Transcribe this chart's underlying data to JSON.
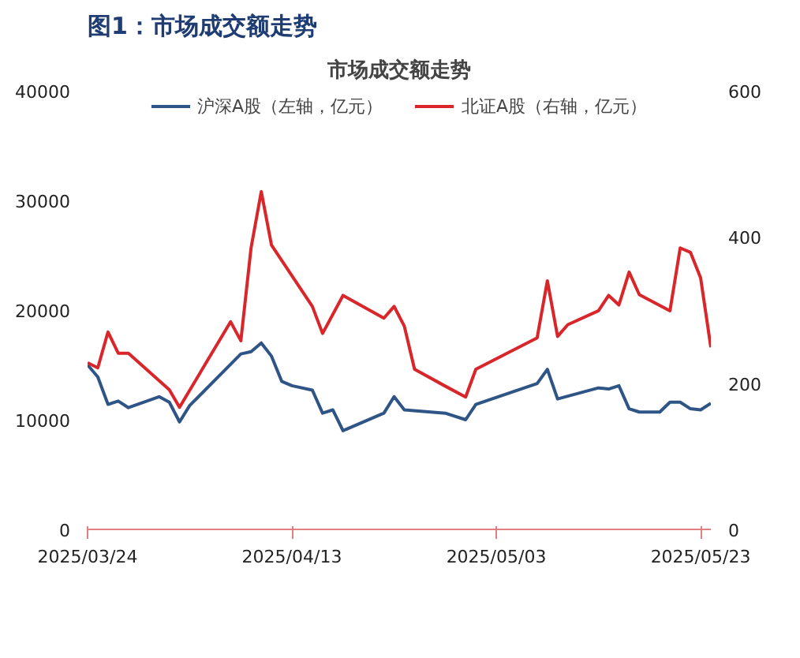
{
  "chart_data": {
    "type": "line",
    "title": "图1：市场成交额走势",
    "subtitle": "市场成交额走势",
    "xlim": [
      "2025-03-24",
      "2025-05-24"
    ],
    "xticks": [
      {
        "value": "2025-03-24",
        "label": "2025/03/24"
      },
      {
        "value": "2025-04-13",
        "label": "2025/04/13"
      },
      {
        "value": "2025-05-03",
        "label": "2025/05/03"
      },
      {
        "value": "2025-05-23",
        "label": "2025/05/23"
      }
    ],
    "ylim": [
      0,
      40000
    ],
    "yticks": [
      0,
      10000,
      20000,
      30000,
      40000
    ],
    "y2lim": [
      0,
      600
    ],
    "y2ticks": [
      0,
      200,
      400,
      600
    ],
    "grid": false,
    "legend": "top",
    "line_style": "solid",
    "series": [
      {
        "name": "沪深A股（左轴，亿元）",
        "color": "#2f5587",
        "x": [
          "2025-03-24",
          "2025-03-25",
          "2025-03-26",
          "2025-03-27",
          "2025-03-28",
          "2025-03-31",
          "2025-04-01",
          "2025-04-02",
          "2025-04-03",
          "2025-04-08",
          "2025-04-09",
          "2025-04-10",
          "2025-04-11",
          "2025-04-12",
          "2025-04-13",
          "2025-04-15",
          "2025-04-16",
          "2025-04-17",
          "2025-04-18",
          "2025-04-22",
          "2025-04-23",
          "2025-04-24",
          "2025-04-28",
          "2025-04-30",
          "2025-05-01",
          "2025-05-07",
          "2025-05-08",
          "2025-05-09",
          "2025-05-13",
          "2025-05-14",
          "2025-05-15",
          "2025-05-16",
          "2025-05-17",
          "2025-05-19",
          "2025-05-20",
          "2025-05-21",
          "2025-05-22",
          "2025-05-23",
          "2025-05-24"
        ],
        "values": [
          15000,
          13900,
          11400,
          11700,
          11100,
          12100,
          11600,
          9800,
          11300,
          16000,
          16200,
          17000,
          15800,
          13500,
          13100,
          12700,
          10600,
          10900,
          9000,
          10600,
          12100,
          10900,
          10600,
          10000,
          11400,
          13300,
          14600,
          11900,
          12900,
          12800,
          13100,
          11000,
          10700,
          10700,
          11600,
          11600,
          11000,
          10900,
          11500
        ]
      },
      {
        "name": "北证A股（右轴，亿元）",
        "color": "#d9262a",
        "axis": "y2",
        "x": [
          "2025-03-24",
          "2025-03-25",
          "2025-03-26",
          "2025-03-27",
          "2025-03-28",
          "2025-04-01",
          "2025-04-02",
          "2025-04-07",
          "2025-04-08",
          "2025-04-09",
          "2025-04-10",
          "2025-04-11",
          "2025-04-15",
          "2025-04-16",
          "2025-04-18",
          "2025-04-22",
          "2025-04-23",
          "2025-04-24",
          "2025-04-25",
          "2025-04-28",
          "2025-04-30",
          "2025-05-01",
          "2025-05-07",
          "2025-05-08",
          "2025-05-09",
          "2025-05-10",
          "2025-05-13",
          "2025-05-14",
          "2025-05-15",
          "2025-05-16",
          "2025-05-17",
          "2025-05-20",
          "2025-05-21",
          "2025-05-22",
          "2025-05-23",
          "2025-05-24"
        ],
        "values": [
          228,
          221,
          270,
          241,
          241,
          191,
          167,
          284,
          258,
          385,
          462,
          389,
          305,
          268,
          320,
          289,
          305,
          278,
          219,
          196,
          181,
          219,
          262,
          340,
          264,
          280,
          299,
          320,
          307,
          352,
          321,
          299,
          385,
          379,
          344,
          249
        ]
      }
    ]
  }
}
